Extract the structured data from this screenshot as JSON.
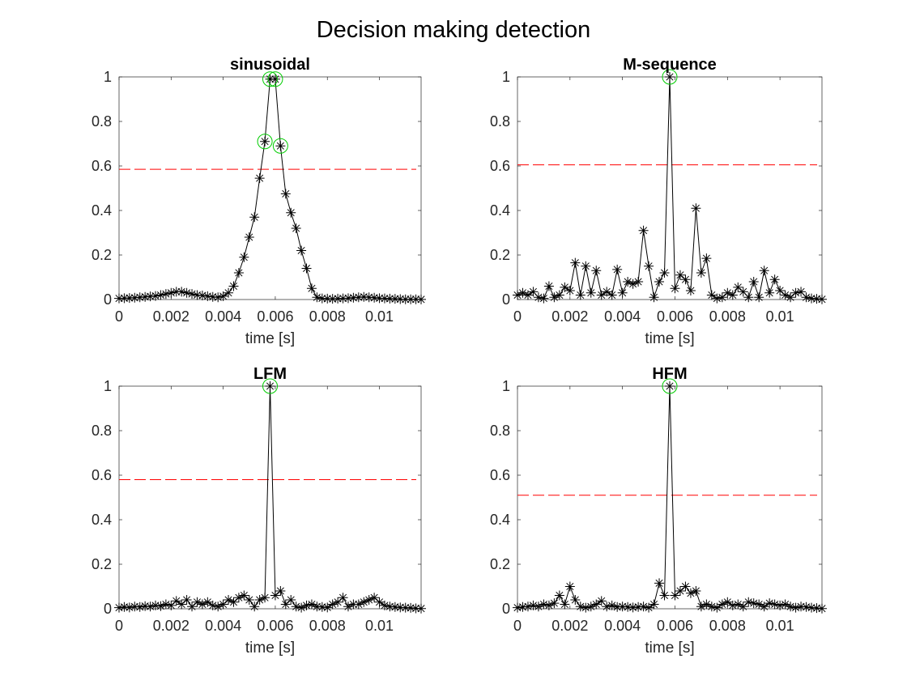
{
  "figure": {
    "suptitle": "Decision making detection"
  },
  "chart_data": [
    {
      "type": "line",
      "title": "sinusoidal",
      "xlabel": "time [s]",
      "ylabel": "",
      "xlim": [
        0,
        0.0116
      ],
      "ylim": [
        0,
        1
      ],
      "xticks": [
        0,
        0.002,
        0.004,
        0.006,
        0.008,
        0.01
      ],
      "xtick_labels": [
        "0",
        "0.002",
        "0.004",
        "0.006",
        "0.008",
        "0.01"
      ],
      "yticks": [
        0,
        0.2,
        0.4,
        0.6,
        0.8,
        1
      ],
      "ytick_labels": [
        "0",
        "0.2",
        "0.4",
        "0.6",
        "0.8",
        "1"
      ],
      "grid": false,
      "threshold": 0.585,
      "threshold_color": "#ff0000",
      "line_color": "#000000",
      "detect_color": "#00cc00",
      "x_step": 0.0002,
      "values": [
        0.005,
        0.006,
        0.007,
        0.008,
        0.01,
        0.012,
        0.014,
        0.016,
        0.02,
        0.025,
        0.03,
        0.035,
        0.035,
        0.03,
        0.025,
        0.02,
        0.018,
        0.015,
        0.012,
        0.01,
        0.015,
        0.03,
        0.06,
        0.12,
        0.19,
        0.28,
        0.37,
        0.545,
        0.71,
        0.99,
        0.99,
        0.69,
        0.475,
        0.39,
        0.32,
        0.22,
        0.14,
        0.05,
        0.01,
        0.005,
        0.004,
        0.003,
        0.004,
        0.005,
        0.006,
        0.008,
        0.01,
        0.012,
        0.01,
        0.008,
        0.006,
        0.005,
        0.004,
        0.003,
        0.002,
        0.001,
        0.001,
        0.001,
        0.0005
      ],
      "detections": [
        0.0056,
        0.0058,
        0.006,
        0.0062
      ]
    },
    {
      "type": "line",
      "title": "M-sequence",
      "xlabel": "time [s]",
      "ylabel": "",
      "xlim": [
        0,
        0.0116
      ],
      "ylim": [
        0,
        1
      ],
      "xticks": [
        0,
        0.002,
        0.004,
        0.006,
        0.008,
        0.01
      ],
      "xtick_labels": [
        "0",
        "0.002",
        "0.004",
        "0.006",
        "0.008",
        "0.01"
      ],
      "yticks": [
        0,
        0.2,
        0.4,
        0.6,
        0.8,
        1
      ],
      "ytick_labels": [
        "0",
        "0.2",
        "0.4",
        "0.6",
        "0.8",
        "1"
      ],
      "grid": false,
      "threshold": 0.605,
      "threshold_color": "#ff0000",
      "line_color": "#000000",
      "detect_color": "#00cc00",
      "x_step": 0.0002,
      "values": [
        0.02,
        0.03,
        0.02,
        0.035,
        0.01,
        0.005,
        0.06,
        0.01,
        0.02,
        0.055,
        0.04,
        0.165,
        0.02,
        0.15,
        0.03,
        0.13,
        0.02,
        0.035,
        0.02,
        0.135,
        0.03,
        0.08,
        0.07,
        0.08,
        0.31,
        0.15,
        0.01,
        0.08,
        0.12,
        1.0,
        0.05,
        0.11,
        0.09,
        0.04,
        0.41,
        0.12,
        0.185,
        0.02,
        0.005,
        0.01,
        0.03,
        0.02,
        0.055,
        0.035,
        0.01,
        0.08,
        0.01,
        0.13,
        0.03,
        0.09,
        0.04,
        0.02,
        0.01,
        0.03,
        0.035,
        0.01,
        0.005,
        0.003,
        0.001
      ],
      "detections": [
        0.0058
      ]
    },
    {
      "type": "line",
      "title": "LFM",
      "xlabel": "time [s]",
      "ylabel": "",
      "xlim": [
        0,
        0.0116
      ],
      "ylim": [
        0,
        1
      ],
      "xticks": [
        0,
        0.002,
        0.004,
        0.006,
        0.008,
        0.01
      ],
      "xtick_labels": [
        "0",
        "0.002",
        "0.004",
        "0.006",
        "0.008",
        "0.01"
      ],
      "yticks": [
        0,
        0.2,
        0.4,
        0.6,
        0.8,
        1
      ],
      "ytick_labels": [
        "0",
        "0.2",
        "0.4",
        "0.6",
        "0.8",
        "1"
      ],
      "grid": false,
      "threshold": 0.58,
      "threshold_color": "#ff0000",
      "line_color": "#000000",
      "detect_color": "#00cc00",
      "x_step": 0.0002,
      "values": [
        0.005,
        0.008,
        0.006,
        0.01,
        0.008,
        0.012,
        0.01,
        0.015,
        0.012,
        0.02,
        0.015,
        0.035,
        0.02,
        0.04,
        0.01,
        0.03,
        0.02,
        0.03,
        0.015,
        0.01,
        0.02,
        0.04,
        0.03,
        0.05,
        0.06,
        0.04,
        0.01,
        0.04,
        0.05,
        1.0,
        0.06,
        0.08,
        0.02,
        0.04,
        0.01,
        0.005,
        0.015,
        0.02,
        0.01,
        0.008,
        0.006,
        0.02,
        0.03,
        0.05,
        0.01,
        0.02,
        0.02,
        0.03,
        0.04,
        0.05,
        0.03,
        0.015,
        0.01,
        0.008,
        0.006,
        0.005,
        0.004,
        0.002,
        0.001
      ],
      "detections": [
        0.0058
      ]
    },
    {
      "type": "line",
      "title": "HFM",
      "xlabel": "time [s]",
      "ylabel": "",
      "xlim": [
        0,
        0.0116
      ],
      "ylim": [
        0,
        1
      ],
      "xticks": [
        0,
        0.002,
        0.004,
        0.006,
        0.008,
        0.01
      ],
      "xtick_labels": [
        "0",
        "0.002",
        "0.004",
        "0.006",
        "0.008",
        "0.01"
      ],
      "yticks": [
        0,
        0.2,
        0.4,
        0.6,
        0.8,
        1
      ],
      "ytick_labels": [
        "0",
        "0.2",
        "0.4",
        "0.6",
        "0.8",
        "1"
      ],
      "grid": false,
      "threshold": 0.51,
      "threshold_color": "#ff0000",
      "line_color": "#000000",
      "detect_color": "#00cc00",
      "x_step": 0.0002,
      "values": [
        0.005,
        0.008,
        0.01,
        0.015,
        0.01,
        0.02,
        0.015,
        0.025,
        0.06,
        0.02,
        0.1,
        0.04,
        0.01,
        0.005,
        0.01,
        0.02,
        0.035,
        0.01,
        0.015,
        0.008,
        0.01,
        0.008,
        0.006,
        0.008,
        0.01,
        0.005,
        0.02,
        0.115,
        0.06,
        1.0,
        0.06,
        0.08,
        0.1,
        0.07,
        0.08,
        0.01,
        0.02,
        0.01,
        0.005,
        0.02,
        0.03,
        0.015,
        0.02,
        0.01,
        0.03,
        0.025,
        0.02,
        0.01,
        0.025,
        0.02,
        0.015,
        0.02,
        0.01,
        0.005,
        0.01,
        0.008,
        0.005,
        0.003,
        0.001
      ],
      "detections": [
        0.0058
      ]
    }
  ]
}
